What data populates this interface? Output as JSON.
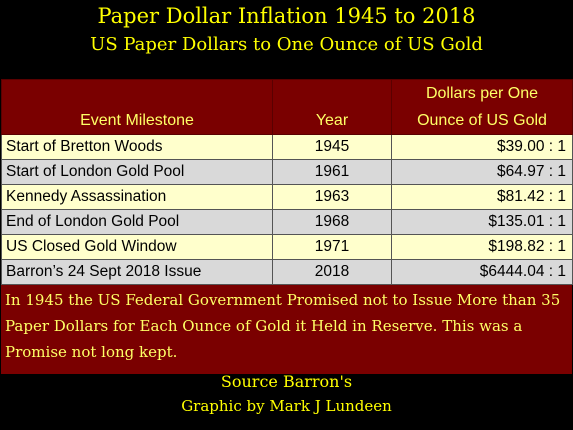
{
  "title": "Paper Dollar Inflation 1945 to 2018",
  "subtitle": "US Paper Dollars to One Ounce of US Gold",
  "chart_data": {
    "type": "table",
    "columns": [
      "Event Milestone",
      "Year",
      "Dollars per One Ounce of US Gold"
    ],
    "column_header_lines": {
      "col3_line1": "Dollars per One",
      "col3_line2": "Ounce of US Gold"
    },
    "rows": [
      {
        "event": "Start of Bretton Woods",
        "year": "1945",
        "value": "$39.00 : 1"
      },
      {
        "event": "Start of London Gold Pool",
        "year": "1961",
        "value": "$64.97 : 1"
      },
      {
        "event": "Kennedy Assassination",
        "year": "1963",
        "value": "$81.42 : 1"
      },
      {
        "event": "End of London Gold Pool",
        "year": "1968",
        "value": "$135.01 : 1"
      },
      {
        "event": "US Closed Gold Window",
        "year": "1971",
        "value": "$198.82 : 1"
      },
      {
        "event": "Barron’s 24 Sept 2018 Issue",
        "year": "2018",
        "value": "$6444.04 : 1"
      }
    ]
  },
  "note": "In 1945 the US Federal Government Promised not to Issue More than 35 Paper Dollars for Each Ounce of Gold it Held in Reserve. This was a Promise not long kept.",
  "source": "Source Barron's",
  "credit": "Graphic by Mark J Lundeen",
  "colors": {
    "background": "#000000",
    "title_text": "#ffff00",
    "header_bg": "#7a0000",
    "header_text": "#ffff66",
    "row_odd": "#ffffcc",
    "row_even": "#d9d9d9"
  }
}
